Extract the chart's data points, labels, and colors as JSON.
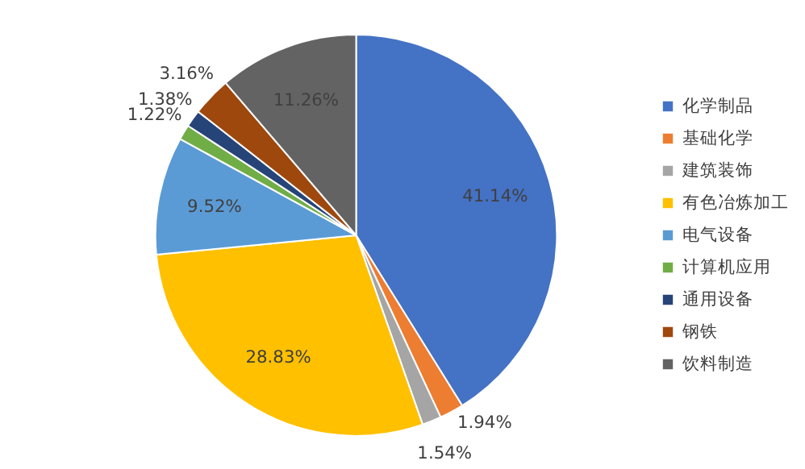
{
  "chart_data": {
    "type": "pie",
    "categories": [
      "化学制品",
      "基础化学",
      "建筑装饰",
      "有色冶炼加工",
      "电气设备",
      "计算机应用",
      "通用设备",
      "钢铁",
      "饮料制造"
    ],
    "values": [
      41.14,
      1.94,
      1.54,
      28.83,
      9.52,
      1.22,
      1.38,
      3.16,
      11.26
    ],
    "colors": [
      "#4472c4",
      "#ed7d31",
      "#a5a5a5",
      "#ffc000",
      "#5b9bd5",
      "#70ad47",
      "#264478",
      "#9e480e",
      "#636363"
    ],
    "value_labels": [
      "41.14%",
      "1.94%",
      "1.54%",
      "28.83%",
      "9.52%",
      "1.22%",
      "1.38%",
      "3.16%",
      "11.26%"
    ],
    "legend": "right"
  }
}
